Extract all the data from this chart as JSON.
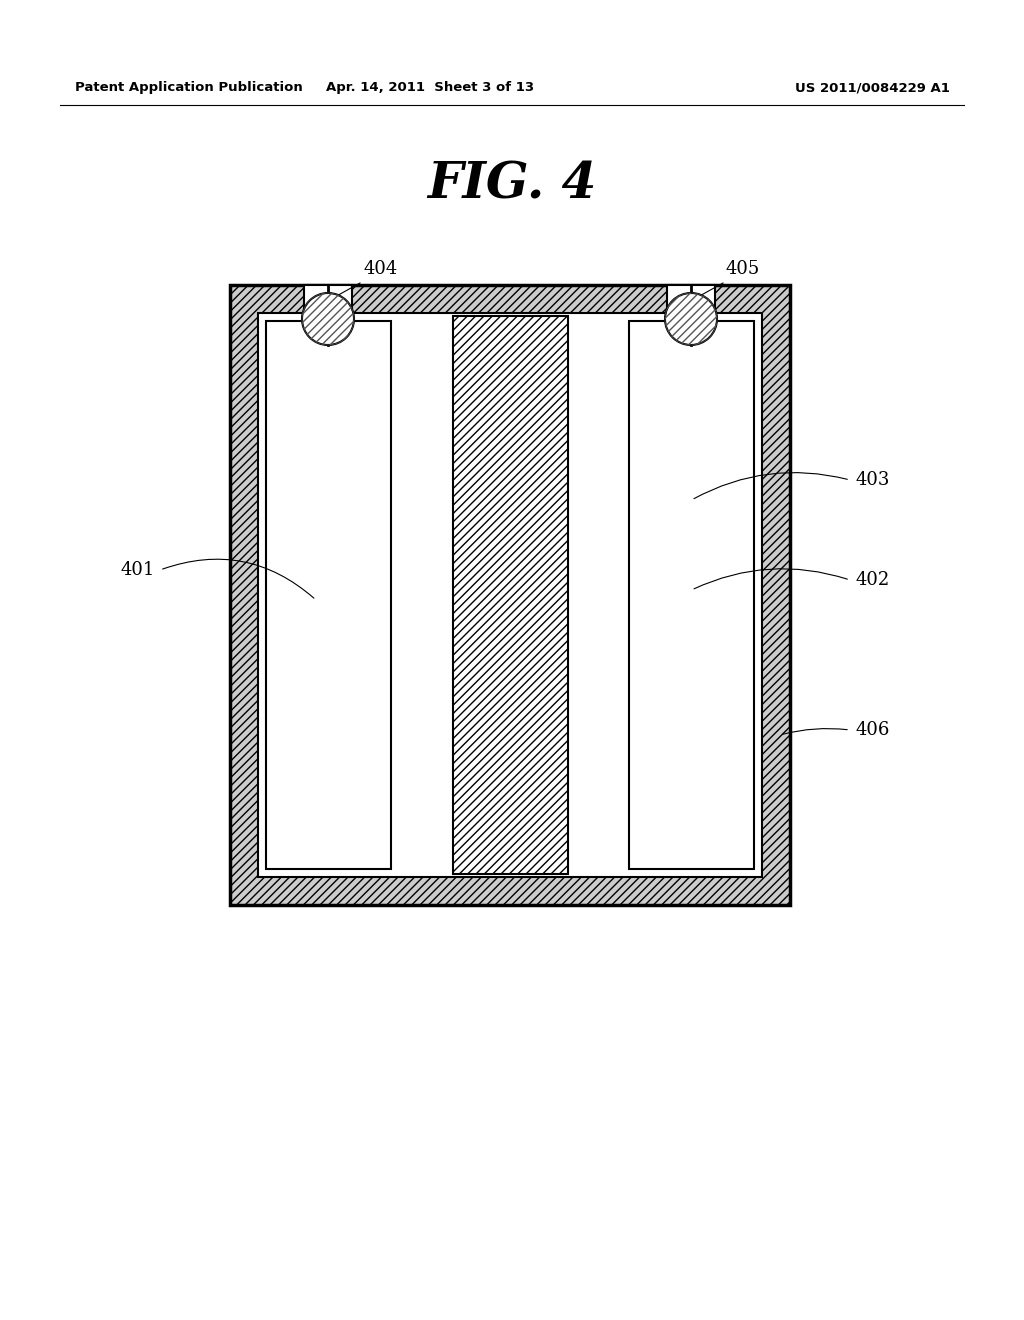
{
  "bg_color": "#ffffff",
  "header_left": "Patent Application Publication",
  "header_center": "Apr. 14, 2011  Sheet 3 of 13",
  "header_right": "US 2011/0084229 A1",
  "fig_title": "FIG. 4"
}
